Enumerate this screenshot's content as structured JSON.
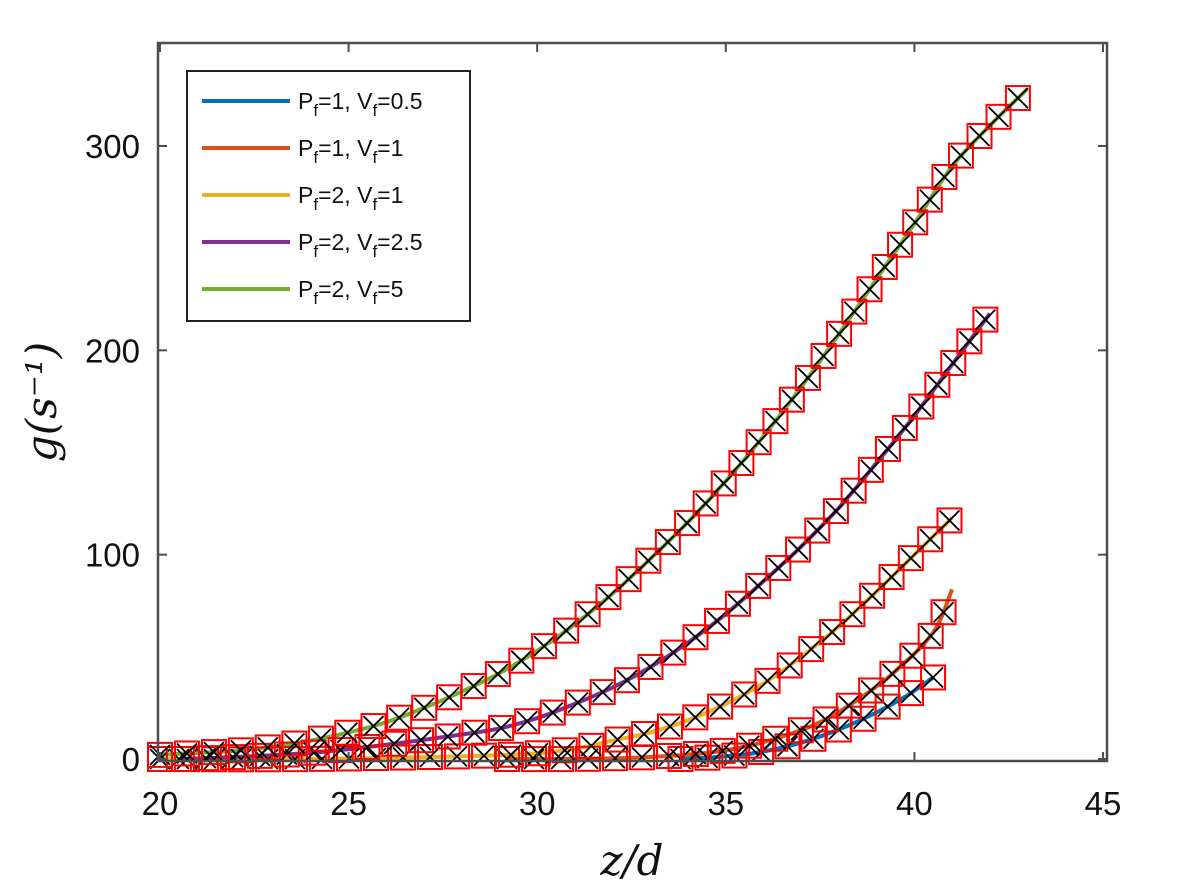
{
  "chart_data": {
    "type": "line",
    "xlabel": "z/d",
    "ylabel": "g(s⁻¹)",
    "xlim": [
      20,
      45
    ],
    "ylim": [
      0,
      350
    ],
    "xticks": [
      20,
      25,
      30,
      35,
      40,
      45
    ],
    "yticks": [
      0,
      100,
      200,
      300
    ],
    "x_tick_labels": [
      "20",
      "25",
      "30",
      "35",
      "40",
      "45"
    ],
    "y_tick_labels": [
      "0",
      "100",
      "200",
      "300"
    ],
    "grid": false,
    "legend_position": "top-left",
    "markers": [
      {
        "name": "square-marker",
        "color": "#ff0000"
      },
      {
        "name": "cross-marker",
        "color": "#000000"
      }
    ],
    "series": [
      {
        "name": "P_f=1, V_f=0.5",
        "label_main": "P",
        "label_sub": "f",
        "label_mid": "=1, V",
        "label_sub2": "f",
        "label_end": "=0.5",
        "color": "#0072bd",
        "x": [
          33.8,
          34.8,
          35.8,
          36.8,
          37.8,
          38.8,
          39.8,
          40.5
        ],
        "y": [
          0,
          1,
          3,
          7,
          13,
          21,
          31,
          40
        ]
      },
      {
        "name": "P_f=1, V_f=1",
        "label_main": "P",
        "label_sub": "f",
        "label_mid": "=1, V",
        "label_sub2": "f",
        "label_end": "=1",
        "color": "#d95319",
        "x": [
          29.2,
          31,
          33,
          34.5,
          35.5,
          36.5,
          37.5,
          38.5,
          39.5,
          40.5,
          41
        ],
        "y": [
          0,
          0,
          1,
          3,
          6,
          11,
          18,
          29,
          43,
          62,
          83
        ]
      },
      {
        "name": "P_f=2, V_f=1",
        "label_main": "P",
        "label_sub": "f",
        "label_mid": "=2, V",
        "label_sub2": "f",
        "label_end": "=1",
        "color": "#edb120",
        "x": [
          20,
          24,
          29.2,
          31,
          32,
          33,
          34,
          35,
          36,
          37,
          38,
          39,
          40,
          41
        ],
        "y": [
          0,
          0,
          2,
          5,
          9,
          13,
          19,
          27,
          37,
          50,
          65,
          82,
          100,
          118
        ]
      },
      {
        "name": "P_f=2, V_f=2.5",
        "label_main": "P",
        "label_sub": "f",
        "label_mid": "=2, V",
        "label_sub2": "f",
        "label_end": "=2.5",
        "color": "#7e2f8e",
        "x": [
          20.5,
          22,
          24,
          26,
          28,
          29,
          30,
          31,
          32,
          33,
          34,
          35,
          36,
          37,
          38,
          39,
          40,
          41,
          42
        ],
        "y": [
          0,
          1,
          3,
          7,
          12,
          15,
          20,
          27,
          35,
          45,
          57,
          71,
          87,
          104,
          123,
          145,
          168,
          193,
          218
        ]
      },
      {
        "name": "P_f=2, V_f=5",
        "label_main": "P",
        "label_sub": "f",
        "label_mid": "=2, V",
        "label_sub2": "f",
        "label_end": "=5",
        "color": "#77ac30",
        "x": [
          20,
          21,
          22,
          23,
          24,
          25,
          26,
          27,
          28,
          29,
          30,
          31,
          32,
          33,
          34,
          35,
          36,
          37,
          38,
          39,
          40,
          41,
          42,
          43
        ],
        "y": [
          2,
          3,
          4,
          6,
          9,
          13,
          18,
          25,
          33,
          42,
          53,
          66,
          81,
          98,
          116,
          136,
          158,
          182,
          208,
          235,
          262,
          290,
          310,
          328
        ]
      }
    ]
  }
}
